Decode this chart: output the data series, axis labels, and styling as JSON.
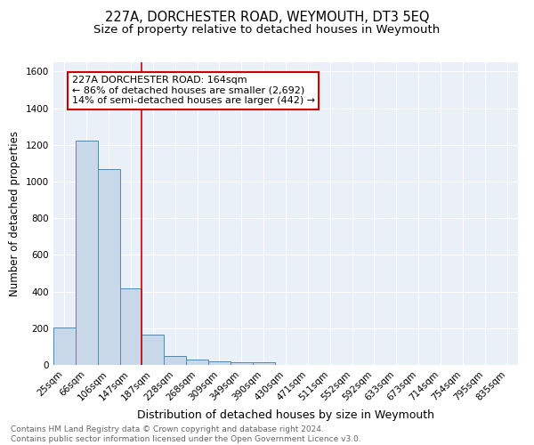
{
  "title": "227A, DORCHESTER ROAD, WEYMOUTH, DT3 5EQ",
  "subtitle": "Size of property relative to detached houses in Weymouth",
  "xlabel": "Distribution of detached houses by size in Weymouth",
  "ylabel": "Number of detached properties",
  "categories": [
    "25sqm",
    "66sqm",
    "106sqm",
    "147sqm",
    "187sqm",
    "228sqm",
    "268sqm",
    "309sqm",
    "349sqm",
    "390sqm",
    "430sqm",
    "471sqm",
    "511sqm",
    "552sqm",
    "592sqm",
    "633sqm",
    "673sqm",
    "714sqm",
    "754sqm",
    "795sqm",
    "835sqm"
  ],
  "values": [
    205,
    1225,
    1070,
    415,
    165,
    48,
    27,
    20,
    15,
    15,
    0,
    0,
    0,
    0,
    0,
    0,
    0,
    0,
    0,
    0,
    0
  ],
  "bar_color": "#c8d8e8",
  "bar_edge_color": "#5588aa",
  "vline_x": 3.5,
  "vline_color": "#cc0000",
  "annotation_text": "227A DORCHESTER ROAD: 164sqm\n← 86% of detached houses are smaller (2,692)\n14% of semi-detached houses are larger (442) →",
  "annotation_box_color": "#ffffff",
  "annotation_box_edge": "#cc0000",
  "ylim": [
    0,
    1650
  ],
  "yticks": [
    0,
    200,
    400,
    600,
    800,
    1000,
    1200,
    1400,
    1600
  ],
  "bg_color": "#eaf0f8",
  "footer_text": "Contains HM Land Registry data © Crown copyright and database right 2024.\nContains public sector information licensed under the Open Government Licence v3.0.",
  "title_fontsize": 10.5,
  "subtitle_fontsize": 9.5,
  "xlabel_fontsize": 9,
  "ylabel_fontsize": 8.5,
  "tick_fontsize": 7.5,
  "annotation_fontsize": 8,
  "footer_fontsize": 6.5
}
